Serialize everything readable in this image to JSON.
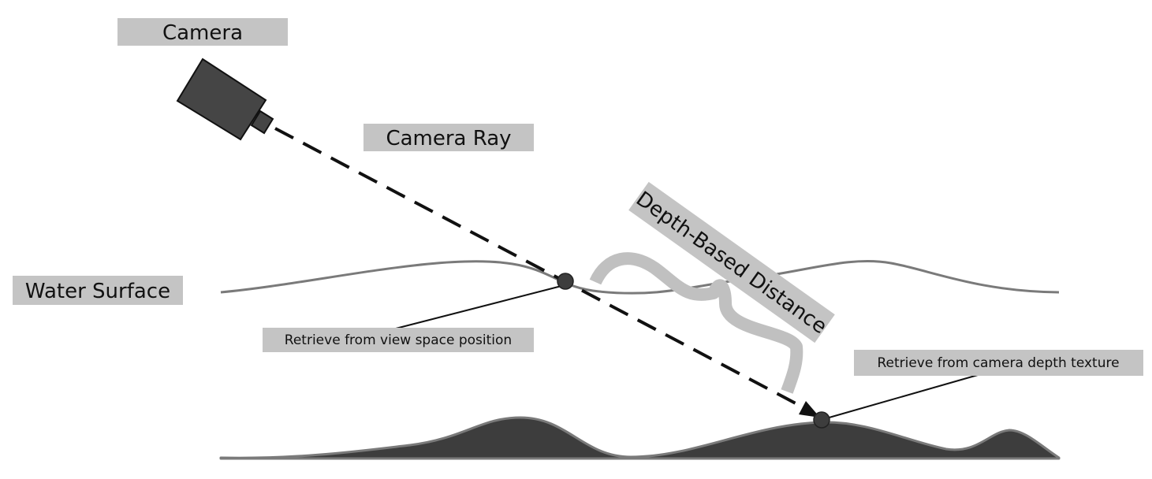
{
  "labels": {
    "camera": "Camera",
    "camera_ray": "Camera Ray",
    "water_surface": "Water Surface",
    "depth_distance": "Depth-Based Distance",
    "view_space": "Retrieve from view space position",
    "depth_texture": "Retrieve from camera depth texture"
  },
  "icons": {
    "camera": "camera-icon"
  },
  "colors": {
    "label_bg": "#c4c4c4",
    "camera_body": "#454545",
    "terrain_fill": "#3d3d3d",
    "terrain_outline": "#7a7a7a",
    "water_line": "#7a7a7a",
    "brace": "#c0c0c0",
    "ray": "#111111",
    "point": "#3d3d3d"
  }
}
